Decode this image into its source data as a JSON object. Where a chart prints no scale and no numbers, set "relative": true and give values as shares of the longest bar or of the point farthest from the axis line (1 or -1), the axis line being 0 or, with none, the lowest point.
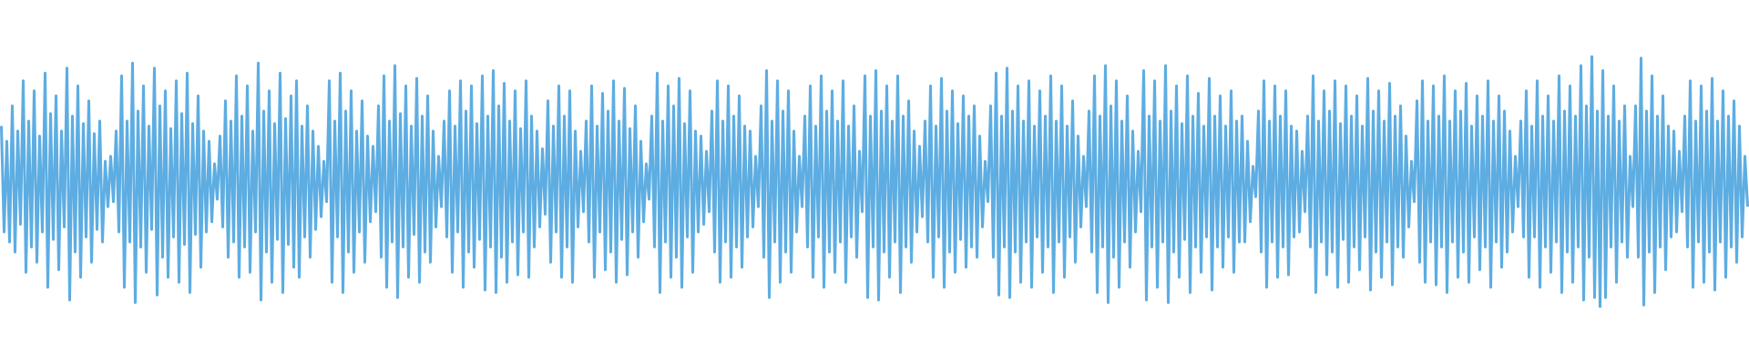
{
  "chart_data": {
    "type": "line",
    "relative": true,
    "line_style": "solid",
    "categories": [
      null,
      null,
      null,
      null,
      null,
      null,
      null,
      null,
      null,
      null,
      null,
      null,
      null,
      null,
      null,
      null,
      null,
      null,
      null,
      null,
      null,
      null,
      null,
      null,
      null,
      null,
      null,
      null,
      null,
      null,
      null,
      null,
      null,
      null,
      null,
      null,
      null,
      null,
      null,
      null,
      null,
      null,
      null,
      null,
      null,
      null,
      null,
      null,
      null,
      null,
      null,
      null,
      null,
      null,
      null,
      null,
      null,
      null,
      null,
      null,
      null,
      null,
      null,
      null,
      null,
      null,
      null,
      null,
      null,
      null,
      null,
      null,
      null,
      null,
      null,
      null,
      null,
      null,
      null,
      null,
      null,
      null,
      null,
      null,
      null,
      null,
      null,
      null,
      null,
      null,
      null,
      null,
      null,
      null,
      null,
      null,
      null,
      null,
      null,
      null,
      null,
      null,
      null,
      null,
      null,
      null,
      null,
      null,
      null,
      null,
      null,
      null,
      null,
      null,
      null,
      null,
      null,
      null,
      null,
      null,
      null,
      null,
      null,
      null,
      null,
      null,
      null,
      null,
      null,
      null,
      null,
      null,
      null,
      null,
      null,
      null,
      null,
      null,
      null,
      null,
      null,
      null,
      null,
      null,
      null,
      null,
      null,
      null,
      null,
      null,
      null,
      null,
      null,
      null,
      null,
      null,
      null,
      null,
      null,
      null,
      null,
      null,
      null,
      null,
      null,
      null,
      null,
      null,
      null,
      null,
      null,
      null,
      null,
      null,
      null,
      null,
      null,
      null,
      null,
      null,
      null,
      null,
      null,
      null,
      null,
      null,
      null,
      null,
      null,
      null,
      null,
      null,
      null,
      null,
      null,
      null,
      null,
      null,
      null,
      null,
      null,
      null,
      null,
      null,
      null,
      null,
      null,
      null,
      null,
      null,
      null,
      null,
      null,
      null,
      null,
      null,
      null,
      null,
      null,
      null,
      null,
      null,
      null,
      null,
      null,
      null,
      null,
      null,
      null,
      null,
      null,
      null,
      null,
      null,
      null,
      null,
      null,
      null,
      null,
      null,
      null,
      null,
      null,
      null,
      null,
      null,
      null,
      null,
      null,
      null,
      null,
      null,
      null,
      null,
      null,
      null,
      null,
      null,
      null,
      null,
      null,
      null,
      null,
      null,
      null,
      null,
      null,
      null,
      null,
      null,
      null,
      null,
      null,
      null,
      null,
      null,
      null,
      null,
      null,
      null,
      null,
      null,
      null,
      null,
      null,
      null,
      null,
      null,
      null,
      null,
      null,
      null,
      null,
      null,
      null,
      null,
      null,
      null,
      null,
      null,
      null,
      null,
      null,
      null,
      null,
      null,
      null,
      null,
      null,
      null,
      null,
      null,
      null,
      null,
      null,
      null,
      null,
      null,
      null,
      null,
      null,
      null,
      null,
      null,
      null,
      null,
      null,
      null,
      null,
      null,
      null,
      null,
      null,
      null,
      null,
      null,
      null,
      null,
      null,
      null,
      null,
      null,
      null,
      null,
      null,
      null,
      null,
      null,
      null,
      null,
      null,
      null,
      null,
      null,
      null,
      null,
      null,
      null,
      null,
      null,
      null,
      null,
      null,
      null,
      null,
      null,
      null,
      null,
      null,
      null,
      null,
      null,
      null,
      null,
      null,
      null,
      null,
      null,
      null,
      null,
      null,
      null,
      null,
      null,
      null,
      null,
      null,
      null,
      null,
      null,
      null,
      null,
      null,
      null,
      null,
      null,
      null,
      null,
      null,
      null,
      null,
      null,
      null,
      null,
      null,
      null,
      null,
      null,
      null,
      null,
      null,
      null,
      null,
      null,
      null,
      null,
      null,
      null,
      null,
      null,
      null,
      null,
      null,
      null,
      null,
      null,
      null,
      null,
      null,
      null,
      null,
      null,
      null,
      null,
      null,
      null,
      null,
      null,
      null,
      null,
      null,
      null,
      null,
      null,
      null,
      null,
      null,
      null,
      null,
      null,
      null,
      null,
      null,
      null,
      null,
      null,
      null,
      null,
      null,
      null,
      null,
      null,
      null,
      null,
      null,
      null,
      null,
      null,
      null,
      null,
      null,
      null,
      null,
      null,
      null,
      null,
      null,
      null,
      null,
      null,
      null,
      null,
      null,
      null,
      null,
      null,
      null,
      null,
      null,
      null,
      null,
      null,
      null,
      null,
      null,
      null,
      null,
      null,
      null,
      null,
      null,
      null,
      null,
      null,
      null,
      null,
      null,
      null,
      null,
      null,
      null,
      null,
      null,
      null,
      null,
      null,
      null,
      null,
      null,
      null,
      null,
      null,
      null,
      null,
      null,
      null,
      null,
      null,
      null,
      null,
      null,
      null,
      null,
      null,
      null,
      null,
      null,
      null,
      null,
      null,
      null,
      null,
      null,
      null,
      null,
      null,
      null,
      null,
      null,
      null,
      null,
      null,
      null,
      null,
      null,
      null,
      null,
      null,
      null,
      null,
      null,
      null,
      null,
      null,
      null,
      null,
      null,
      null,
      null,
      null,
      null,
      null,
      null,
      null,
      null,
      null,
      null,
      null,
      null,
      null,
      null,
      null,
      null,
      null,
      null,
      null,
      null,
      null,
      null,
      null,
      null,
      null,
      null,
      null,
      null,
      null,
      null,
      null,
      null,
      null,
      null,
      null,
      null,
      null,
      null,
      null,
      null,
      null,
      null,
      null,
      null,
      null,
      null,
      null,
      null,
      null,
      null,
      null,
      null,
      null,
      null,
      null,
      null,
      null,
      null,
      null,
      null,
      null,
      null,
      null,
      null,
      null,
      null,
      null,
      null,
      null,
      null,
      null,
      null,
      null
    ],
    "series": [
      {
        "color": "#5dade2",
        "values": [
          0.72,
          0.3,
          0.66,
          0.26,
          0.8,
          0.22,
          0.7,
          0.33,
          0.9,
          0.14,
          0.74,
          0.24,
          0.86,
          0.18,
          0.68,
          0.3,
          0.93,
          0.08,
          0.77,
          0.27,
          0.84,
          0.15,
          0.7,
          0.32,
          0.95,
          0.03,
          0.76,
          0.22,
          0.88,
          0.12,
          0.73,
          0.28,
          0.82,
          0.18,
          0.69,
          0.31,
          0.74,
          0.26,
          0.58,
          0.4,
          0.6,
          0.42,
          0.7,
          0.3,
          0.92,
          0.08,
          0.74,
          0.26,
          0.97,
          0.02,
          0.78,
          0.24,
          0.88,
          0.14,
          0.72,
          0.31,
          0.95,
          0.05,
          0.8,
          0.2,
          0.86,
          0.12,
          0.71,
          0.28,
          0.9,
          0.1,
          0.77,
          0.25,
          0.93,
          0.06,
          0.73,
          0.29,
          0.84,
          0.16,
          0.7,
          0.3,
          0.66,
          0.34,
          0.57,
          0.43,
          0.68,
          0.32,
          0.82,
          0.2,
          0.74,
          0.26,
          0.92,
          0.12,
          0.76,
          0.24,
          0.88,
          0.14,
          0.7,
          0.3,
          0.97,
          0.03,
          0.78,
          0.22,
          0.86,
          0.1,
          0.73,
          0.27,
          0.93,
          0.06,
          0.75,
          0.25,
          0.84,
          0.16,
          0.9,
          0.12,
          0.72,
          0.28,
          0.8,
          0.2,
          0.7,
          0.31,
          0.64,
          0.36,
          0.58,
          0.42,
          0.9,
          0.1,
          0.74,
          0.28,
          0.93,
          0.06,
          0.78,
          0.22,
          0.86,
          0.14,
          0.7,
          0.3,
          0.82,
          0.18,
          0.68,
          0.34,
          0.64,
          0.38,
          0.8,
          0.2,
          0.92,
          0.08,
          0.74,
          0.26,
          0.96,
          0.04,
          0.77,
          0.24,
          0.88,
          0.12,
          0.72,
          0.29,
          0.91,
          0.1,
          0.76,
          0.22,
          0.84,
          0.18,
          0.7,
          0.32,
          0.6,
          0.4,
          0.74,
          0.28,
          0.86,
          0.14,
          0.72,
          0.3,
          0.9,
          0.08,
          0.78,
          0.22,
          0.88,
          0.16,
          0.73,
          0.27,
          0.92,
          0.07,
          0.76,
          0.24,
          0.94,
          0.06,
          0.8,
          0.2,
          0.89,
          0.1,
          0.74,
          0.26,
          0.86,
          0.13,
          0.71,
          0.3,
          0.9,
          0.12,
          0.76,
          0.24,
          0.7,
          0.32,
          0.63,
          0.37,
          0.82,
          0.18,
          0.72,
          0.3,
          0.88,
          0.12,
          0.76,
          0.24,
          0.86,
          0.1,
          0.7,
          0.32,
          0.62,
          0.38,
          0.74,
          0.26,
          0.88,
          0.12,
          0.72,
          0.3,
          0.85,
          0.15,
          0.78,
          0.22,
          0.9,
          0.1,
          0.74,
          0.27,
          0.87,
          0.13,
          0.71,
          0.3,
          0.8,
          0.2,
          0.66,
          0.34,
          0.57,
          0.43,
          0.76,
          0.24,
          0.93,
          0.06,
          0.74,
          0.26,
          0.88,
          0.12,
          0.8,
          0.2,
          0.91,
          0.08,
          0.73,
          0.28,
          0.86,
          0.14,
          0.7,
          0.3,
          0.68,
          0.33,
          0.62,
          0.38,
          0.78,
          0.22,
          0.9,
          0.1,
          0.74,
          0.26,
          0.88,
          0.12,
          0.76,
          0.24,
          0.84,
          0.16,
          0.72,
          0.28,
          0.7,
          0.32,
          0.6,
          0.4,
          0.8,
          0.2,
          0.94,
          0.04,
          0.74,
          0.26,
          0.9,
          0.1,
          0.78,
          0.22,
          0.86,
          0.14,
          0.7,
          0.3,
          0.6,
          0.4,
          0.76,
          0.24,
          0.88,
          0.12,
          0.72,
          0.28,
          0.92,
          0.08,
          0.78,
          0.22,
          0.86,
          0.14,
          0.74,
          0.26,
          0.9,
          0.1,
          0.72,
          0.28,
          0.8,
          0.2,
          0.62,
          0.38,
          0.92,
          0.04,
          0.76,
          0.24,
          0.94,
          0.03,
          0.78,
          0.22,
          0.88,
          0.12,
          0.74,
          0.26,
          0.92,
          0.06,
          0.76,
          0.24,
          0.82,
          0.18,
          0.7,
          0.3,
          0.64,
          0.36,
          0.74,
          0.26,
          0.88,
          0.12,
          0.72,
          0.28,
          0.91,
          0.08,
          0.78,
          0.22,
          0.86,
          0.14,
          0.73,
          0.27,
          0.84,
          0.16,
          0.76,
          0.24,
          0.8,
          0.2,
          0.68,
          0.32,
          0.58,
          0.42,
          0.8,
          0.2,
          0.93,
          0.05,
          0.76,
          0.24,
          0.95,
          0.04,
          0.78,
          0.22,
          0.88,
          0.1,
          0.74,
          0.26,
          0.9,
          0.08,
          0.72,
          0.28,
          0.86,
          0.14,
          0.76,
          0.24,
          0.92,
          0.06,
          0.74,
          0.26,
          0.88,
          0.12,
          0.72,
          0.28,
          0.82,
          0.18,
          0.68,
          0.32,
          0.6,
          0.4,
          0.78,
          0.22,
          0.92,
          0.06,
          0.76,
          0.24,
          0.96,
          0.02,
          0.8,
          0.2,
          0.9,
          0.08,
          0.74,
          0.26,
          0.84,
          0.16,
          0.7,
          0.3,
          0.62,
          0.38,
          0.94,
          0.03,
          0.76,
          0.24,
          0.9,
          0.08,
          0.74,
          0.26,
          0.96,
          0.02,
          0.78,
          0.22,
          0.88,
          0.12,
          0.73,
          0.27,
          0.92,
          0.06,
          0.76,
          0.24,
          0.85,
          0.14,
          0.72,
          0.28,
          0.91,
          0.07,
          0.76,
          0.24,
          0.84,
          0.16,
          0.72,
          0.28,
          0.86,
          0.14,
          0.74,
          0.26,
          0.76,
          0.26,
          0.66,
          0.34,
          0.56,
          0.44,
          0.78,
          0.22,
          0.9,
          0.08,
          0.74,
          0.26,
          0.88,
          0.12,
          0.76,
          0.24,
          0.86,
          0.13,
          0.72,
          0.28,
          0.7,
          0.3,
          0.62,
          0.38,
          0.76,
          0.24,
          0.92,
          0.06,
          0.74,
          0.26,
          0.86,
          0.13,
          0.78,
          0.22,
          0.9,
          0.08,
          0.73,
          0.27,
          0.88,
          0.1,
          0.76,
          0.24,
          0.84,
          0.15,
          0.72,
          0.28,
          0.91,
          0.07,
          0.78,
          0.22,
          0.86,
          0.12,
          0.74,
          0.26,
          0.89,
          0.09,
          0.76,
          0.24,
          0.8,
          0.2,
          0.68,
          0.32,
          0.58,
          0.42,
          0.82,
          0.18,
          0.9,
          0.1,
          0.74,
          0.26,
          0.88,
          0.09,
          0.76,
          0.24,
          0.92,
          0.06,
          0.74,
          0.26,
          0.86,
          0.12,
          0.78,
          0.22,
          0.89,
          0.1,
          0.72,
          0.28,
          0.84,
          0.15,
          0.76,
          0.24,
          0.9,
          0.08,
          0.74,
          0.26,
          0.84,
          0.16,
          0.78,
          0.22,
          0.7,
          0.3,
          0.6,
          0.4,
          0.74,
          0.28,
          0.86,
          0.12,
          0.72,
          0.28,
          0.9,
          0.08,
          0.76,
          0.24,
          0.84,
          0.14,
          0.74,
          0.26,
          0.92,
          0.06,
          0.78,
          0.22,
          0.88,
          0.1,
          0.76,
          0.24,
          0.96,
          0.03,
          0.8,
          0.2,
          1.0,
          0.04,
          0.78,
          0.0,
          0.94,
          0.04,
          0.76,
          0.24,
          0.88,
          0.1,
          0.74,
          0.26,
          0.8,
          0.2,
          0.6,
          0.4,
          0.8,
          0.2,
          0.99,
          0.01,
          0.78,
          0.22,
          0.92,
          0.06,
          0.76,
          0.24,
          0.84,
          0.15,
          0.72,
          0.28,
          0.7,
          0.3,
          0.62,
          0.38,
          0.76,
          0.24,
          0.9,
          0.08,
          0.74,
          0.26,
          0.88,
          0.1,
          0.78,
          0.22,
          0.91,
          0.07,
          0.74,
          0.26,
          0.86,
          0.12,
          0.76,
          0.24,
          0.82,
          0.18,
          0.72,
          0.28,
          0.6,
          0.4
        ]
      }
    ]
  }
}
